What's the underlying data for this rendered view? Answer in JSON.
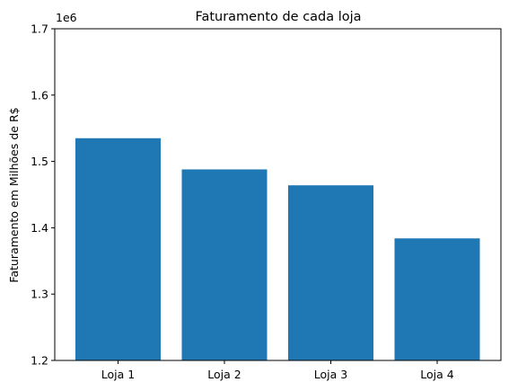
{
  "chart_data": {
    "type": "bar",
    "title": "Faturamento de cada loja",
    "xlabel": "",
    "ylabel": "Faturamento em Milhões de R$",
    "scale_label": "1e6",
    "categories": [
      "Loja 1",
      "Loja 2",
      "Loja 3",
      "Loja 4"
    ],
    "values": [
      1535000,
      1488000,
      1464000,
      1384000
    ],
    "ylim": [
      1.2,
      1.7
    ],
    "yticks": [
      "1.2",
      "1.3",
      "1.4",
      "1.5",
      "1.6",
      "1.7"
    ],
    "bar_color": "#1f77b4",
    "grid": false,
    "legend": "none"
  }
}
